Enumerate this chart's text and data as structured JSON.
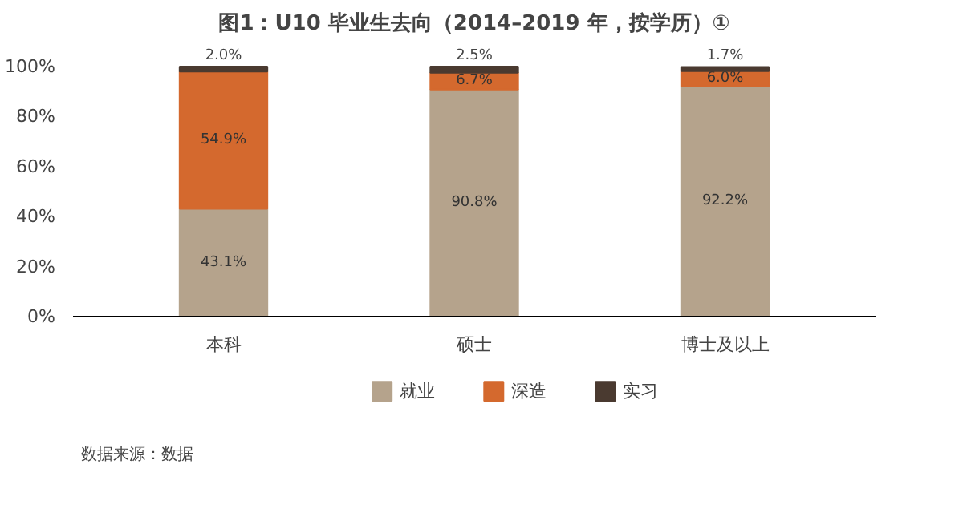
{
  "chart_data": {
    "type": "bar",
    "stacked": true,
    "title": "图1：U10 毕业生去向（2014–2019 年，按学历）①",
    "categories": [
      "本科",
      "硕士",
      "博士及以上"
    ],
    "series": [
      {
        "name": "就业",
        "color": "#b5a38c",
        "values": [
          43.1,
          90.8,
          92.2
        ],
        "value_labels": [
          "43.1%",
          "90.8%",
          "92.2%"
        ]
      },
      {
        "name": "深造",
        "color": "#d4692e",
        "values": [
          54.9,
          6.7,
          6.0
        ],
        "value_labels": [
          "54.9%",
          "6.7%",
          "6.0%"
        ]
      },
      {
        "name": "实习",
        "color": "#4a3a30",
        "values": [
          2.0,
          2.5,
          1.7
        ],
        "value_labels": [
          "2.0%",
          "2.5%",
          "1.7%"
        ]
      }
    ],
    "ylim": [
      0,
      100
    ],
    "yticks": [
      {
        "value": 0,
        "label": "0%"
      },
      {
        "value": 20,
        "label": "20%"
      },
      {
        "value": 40,
        "label": "40%"
      },
      {
        "value": 60,
        "label": "60%"
      },
      {
        "value": 80,
        "label": "80%"
      },
      {
        "value": 100,
        "label": "100%"
      }
    ],
    "grid": false,
    "legend": "bottom",
    "annotations": [
      "数据来源：数据"
    ]
  }
}
